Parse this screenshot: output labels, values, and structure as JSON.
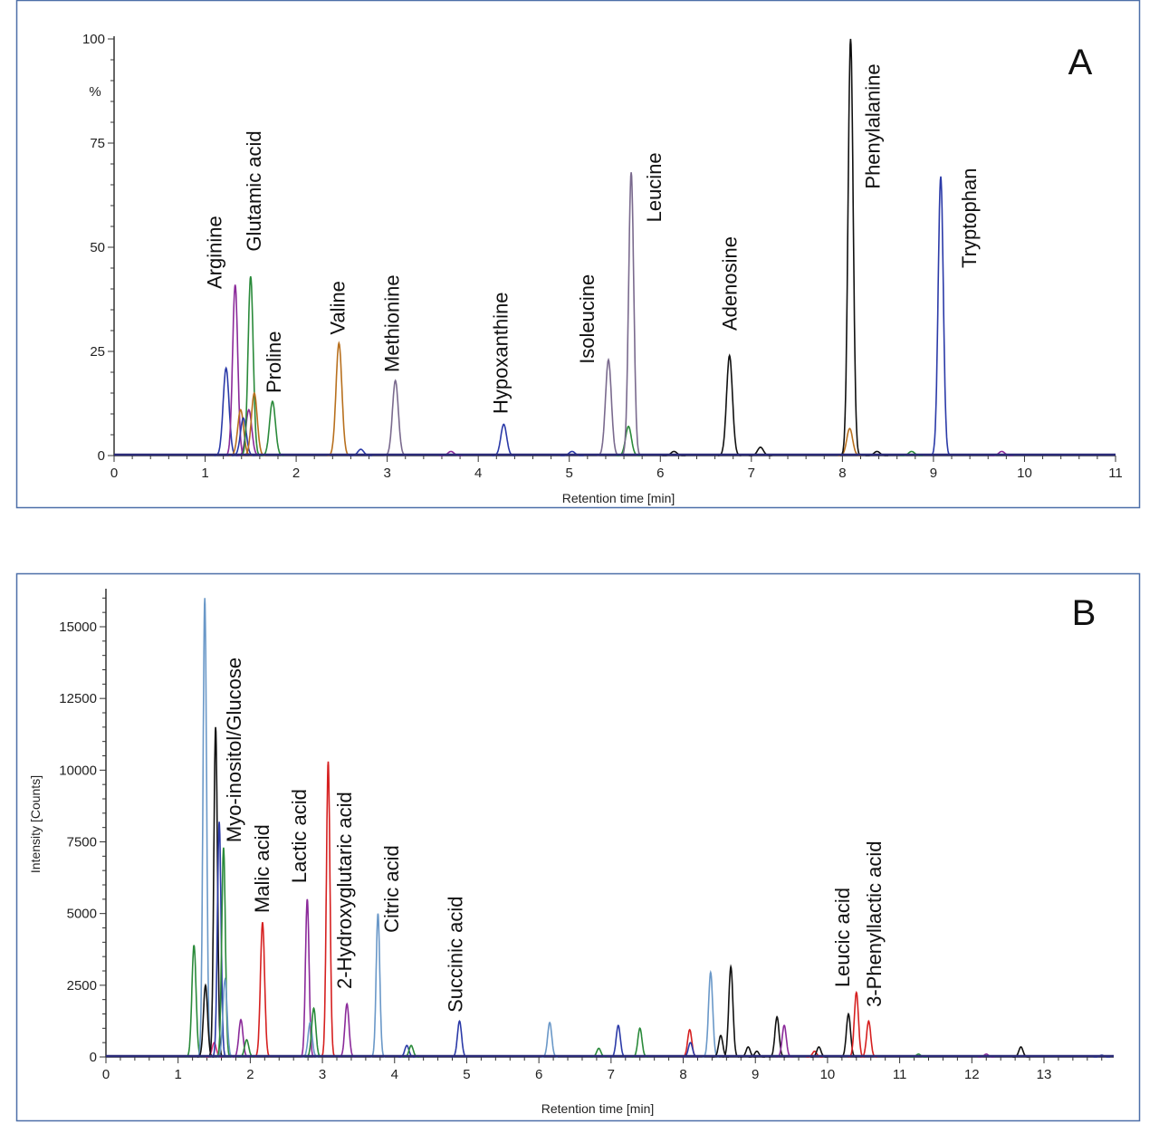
{
  "chart_data": [
    {
      "type": "line",
      "panel_label": "A",
      "xlabel": "Retention time [min]",
      "ylabel": "%",
      "xlim": [
        0,
        11
      ],
      "ylim": [
        0,
        100
      ],
      "xticks": [
        0,
        1,
        2,
        3,
        4,
        5,
        6,
        7,
        8,
        9,
        10,
        11
      ],
      "yticks": [
        0,
        25,
        50,
        75,
        100
      ],
      "grid": false,
      "colors": {
        "purple": "#8b2a9a",
        "blue": "#2b3aa8",
        "green": "#2a8a3a",
        "orange": "#b8701e",
        "graypurple": "#7a6a8e",
        "black": "#111111",
        "baseline": "#2a2a78"
      },
      "peaks": [
        {
          "rt": 1.23,
          "height": 21,
          "color": "blue"
        },
        {
          "rt": 1.33,
          "height": 41,
          "color": "purple"
        },
        {
          "rt": 1.39,
          "height": 11,
          "color": "orange"
        },
        {
          "rt": 1.42,
          "height": 9,
          "color": "blue"
        },
        {
          "rt": 1.48,
          "height": 11,
          "color": "purple"
        },
        {
          "rt": 1.5,
          "height": 43,
          "color": "green"
        },
        {
          "rt": 1.54,
          "height": 15,
          "color": "orange"
        },
        {
          "rt": 1.74,
          "height": 13,
          "color": "green"
        },
        {
          "rt": 2.47,
          "height": 27,
          "color": "orange"
        },
        {
          "rt": 2.71,
          "height": 1.5,
          "color": "blue"
        },
        {
          "rt": 3.09,
          "height": 18,
          "color": "graypurple"
        },
        {
          "rt": 3.7,
          "height": 1,
          "color": "purple"
        },
        {
          "rt": 4.28,
          "height": 7.5,
          "color": "blue"
        },
        {
          "rt": 5.03,
          "height": 1,
          "color": "blue"
        },
        {
          "rt": 5.43,
          "height": 23,
          "color": "graypurple"
        },
        {
          "rt": 5.65,
          "height": 7,
          "color": "green"
        },
        {
          "rt": 5.68,
          "height": 68,
          "color": "graypurple"
        },
        {
          "rt": 6.15,
          "height": 1,
          "color": "black"
        },
        {
          "rt": 6.76,
          "height": 24,
          "color": "black"
        },
        {
          "rt": 7.1,
          "height": 2,
          "color": "black"
        },
        {
          "rt": 8.08,
          "height": 6.5,
          "color": "orange"
        },
        {
          "rt": 8.09,
          "height": 100,
          "color": "black"
        },
        {
          "rt": 8.38,
          "height": 1,
          "color": "black"
        },
        {
          "rt": 8.76,
          "height": 1,
          "color": "green"
        },
        {
          "rt": 9.08,
          "height": 67,
          "color": "blue"
        },
        {
          "rt": 9.75,
          "height": 1,
          "color": "purple"
        }
      ],
      "annotations": [
        {
          "text": "Arginine",
          "x": 1.1,
          "y": 40
        },
        {
          "text": "Glutamic acid",
          "x": 1.53,
          "y": 49
        },
        {
          "text": "Proline",
          "x": 1.75,
          "y": 15
        },
        {
          "text": "Valine",
          "x": 2.45,
          "y": 29
        },
        {
          "text": "Methionine",
          "x": 3.05,
          "y": 20
        },
        {
          "text": "Hypoxanthine",
          "x": 4.24,
          "y": 10
        },
        {
          "text": "Isoleucine",
          "x": 5.19,
          "y": 22
        },
        {
          "text": "Leucine",
          "x": 5.93,
          "y": 56
        },
        {
          "text": "Adenosine",
          "x": 6.76,
          "y": 30
        },
        {
          "text": "Phenylalanine",
          "x": 8.33,
          "y": 64
        },
        {
          "text": "Tryptophan",
          "x": 9.39,
          "y": 45
        }
      ]
    },
    {
      "type": "line",
      "panel_label": "B",
      "xlabel": "Retention time [min]",
      "ylabel": "Intensity [Counts]",
      "xlim": [
        0,
        14
      ],
      "ylim": [
        0,
        16000
      ],
      "xticks": [
        0,
        1,
        2,
        3,
        4,
        5,
        6,
        7,
        8,
        9,
        10,
        11,
        12,
        13
      ],
      "yticks": [
        0,
        2500,
        5000,
        7500,
        10000,
        12500,
        15000
      ],
      "grid": false,
      "colors": {
        "purple": "#8b2a9a",
        "blue": "#2b3aa8",
        "green": "#2a8a3a",
        "lightblue": "#6a98c8",
        "black": "#111111",
        "red": "#d62020",
        "pink": "#e0307a",
        "baseline": "#2a2a78"
      },
      "peaks": [
        {
          "rt": 1.22,
          "height": 3900,
          "color": "green"
        },
        {
          "rt": 1.37,
          "height": 16000,
          "color": "lightblue"
        },
        {
          "rt": 1.38,
          "height": 2500,
          "color": "black"
        },
        {
          "rt": 1.5,
          "height": 500,
          "color": "pink"
        },
        {
          "rt": 1.52,
          "height": 11500,
          "color": "black"
        },
        {
          "rt": 1.57,
          "height": 8200,
          "color": "blue"
        },
        {
          "rt": 1.63,
          "height": 7300,
          "color": "green"
        },
        {
          "rt": 1.65,
          "height": 2700,
          "color": "lightblue"
        },
        {
          "rt": 1.87,
          "height": 1300,
          "color": "purple"
        },
        {
          "rt": 1.95,
          "height": 600,
          "color": "green"
        },
        {
          "rt": 2.17,
          "height": 4700,
          "color": "red"
        },
        {
          "rt": 2.79,
          "height": 5500,
          "color": "purple"
        },
        {
          "rt": 2.83,
          "height": 1200,
          "color": "lightblue"
        },
        {
          "rt": 2.88,
          "height": 1700,
          "color": "green"
        },
        {
          "rt": 3.08,
          "height": 10300,
          "color": "red"
        },
        {
          "rt": 3.34,
          "height": 1850,
          "color": "purple"
        },
        {
          "rt": 3.77,
          "height": 5000,
          "color": "lightblue"
        },
        {
          "rt": 4.17,
          "height": 400,
          "color": "blue"
        },
        {
          "rt": 4.23,
          "height": 400,
          "color": "green"
        },
        {
          "rt": 4.9,
          "height": 1250,
          "color": "blue"
        },
        {
          "rt": 6.15,
          "height": 1200,
          "color": "lightblue"
        },
        {
          "rt": 6.83,
          "height": 300,
          "color": "green"
        },
        {
          "rt": 7.1,
          "height": 1100,
          "color": "blue"
        },
        {
          "rt": 7.4,
          "height": 1000,
          "color": "green"
        },
        {
          "rt": 8.09,
          "height": 950,
          "color": "red"
        },
        {
          "rt": 8.1,
          "height": 500,
          "color": "blue"
        },
        {
          "rt": 8.38,
          "height": 2950,
          "color": "lightblue"
        },
        {
          "rt": 8.52,
          "height": 750,
          "color": "black"
        },
        {
          "rt": 8.66,
          "height": 3150,
          "color": "black"
        },
        {
          "rt": 8.9,
          "height": 350,
          "color": "black"
        },
        {
          "rt": 9.02,
          "height": 200,
          "color": "black"
        },
        {
          "rt": 9.3,
          "height": 1400,
          "color": "black"
        },
        {
          "rt": 9.4,
          "height": 1100,
          "color": "purple"
        },
        {
          "rt": 9.82,
          "height": 200,
          "color": "red"
        },
        {
          "rt": 9.88,
          "height": 350,
          "color": "black"
        },
        {
          "rt": 10.29,
          "height": 1500,
          "color": "black"
        },
        {
          "rt": 10.4,
          "height": 2250,
          "color": "red"
        },
        {
          "rt": 10.57,
          "height": 1250,
          "color": "red"
        },
        {
          "rt": 11.26,
          "height": 100,
          "color": "green"
        },
        {
          "rt": 12.2,
          "height": 100,
          "color": "purple"
        },
        {
          "rt": 12.68,
          "height": 350,
          "color": "black"
        },
        {
          "rt": 13.8,
          "height": 60,
          "color": "blue"
        }
      ],
      "annotations": [
        {
          "text": "Myo-inositol/Glucose",
          "x": 1.77,
          "y": 7480
        },
        {
          "text": "Malic acid",
          "x": 2.16,
          "y": 5020
        },
        {
          "text": "Lactic acid",
          "x": 2.67,
          "y": 6060
        },
        {
          "text": "2-Hydroxyglutaric acid",
          "x": 3.3,
          "y": 2370
        },
        {
          "text": "Citric acid",
          "x": 3.95,
          "y": 4330
        },
        {
          "text": "Succinic acid",
          "x": 4.84,
          "y": 1550
        },
        {
          "text": "Leucic acid",
          "x": 10.2,
          "y": 2430
        },
        {
          "text": "3-Phenyllactic acid",
          "x": 10.64,
          "y": 1740
        }
      ]
    }
  ]
}
